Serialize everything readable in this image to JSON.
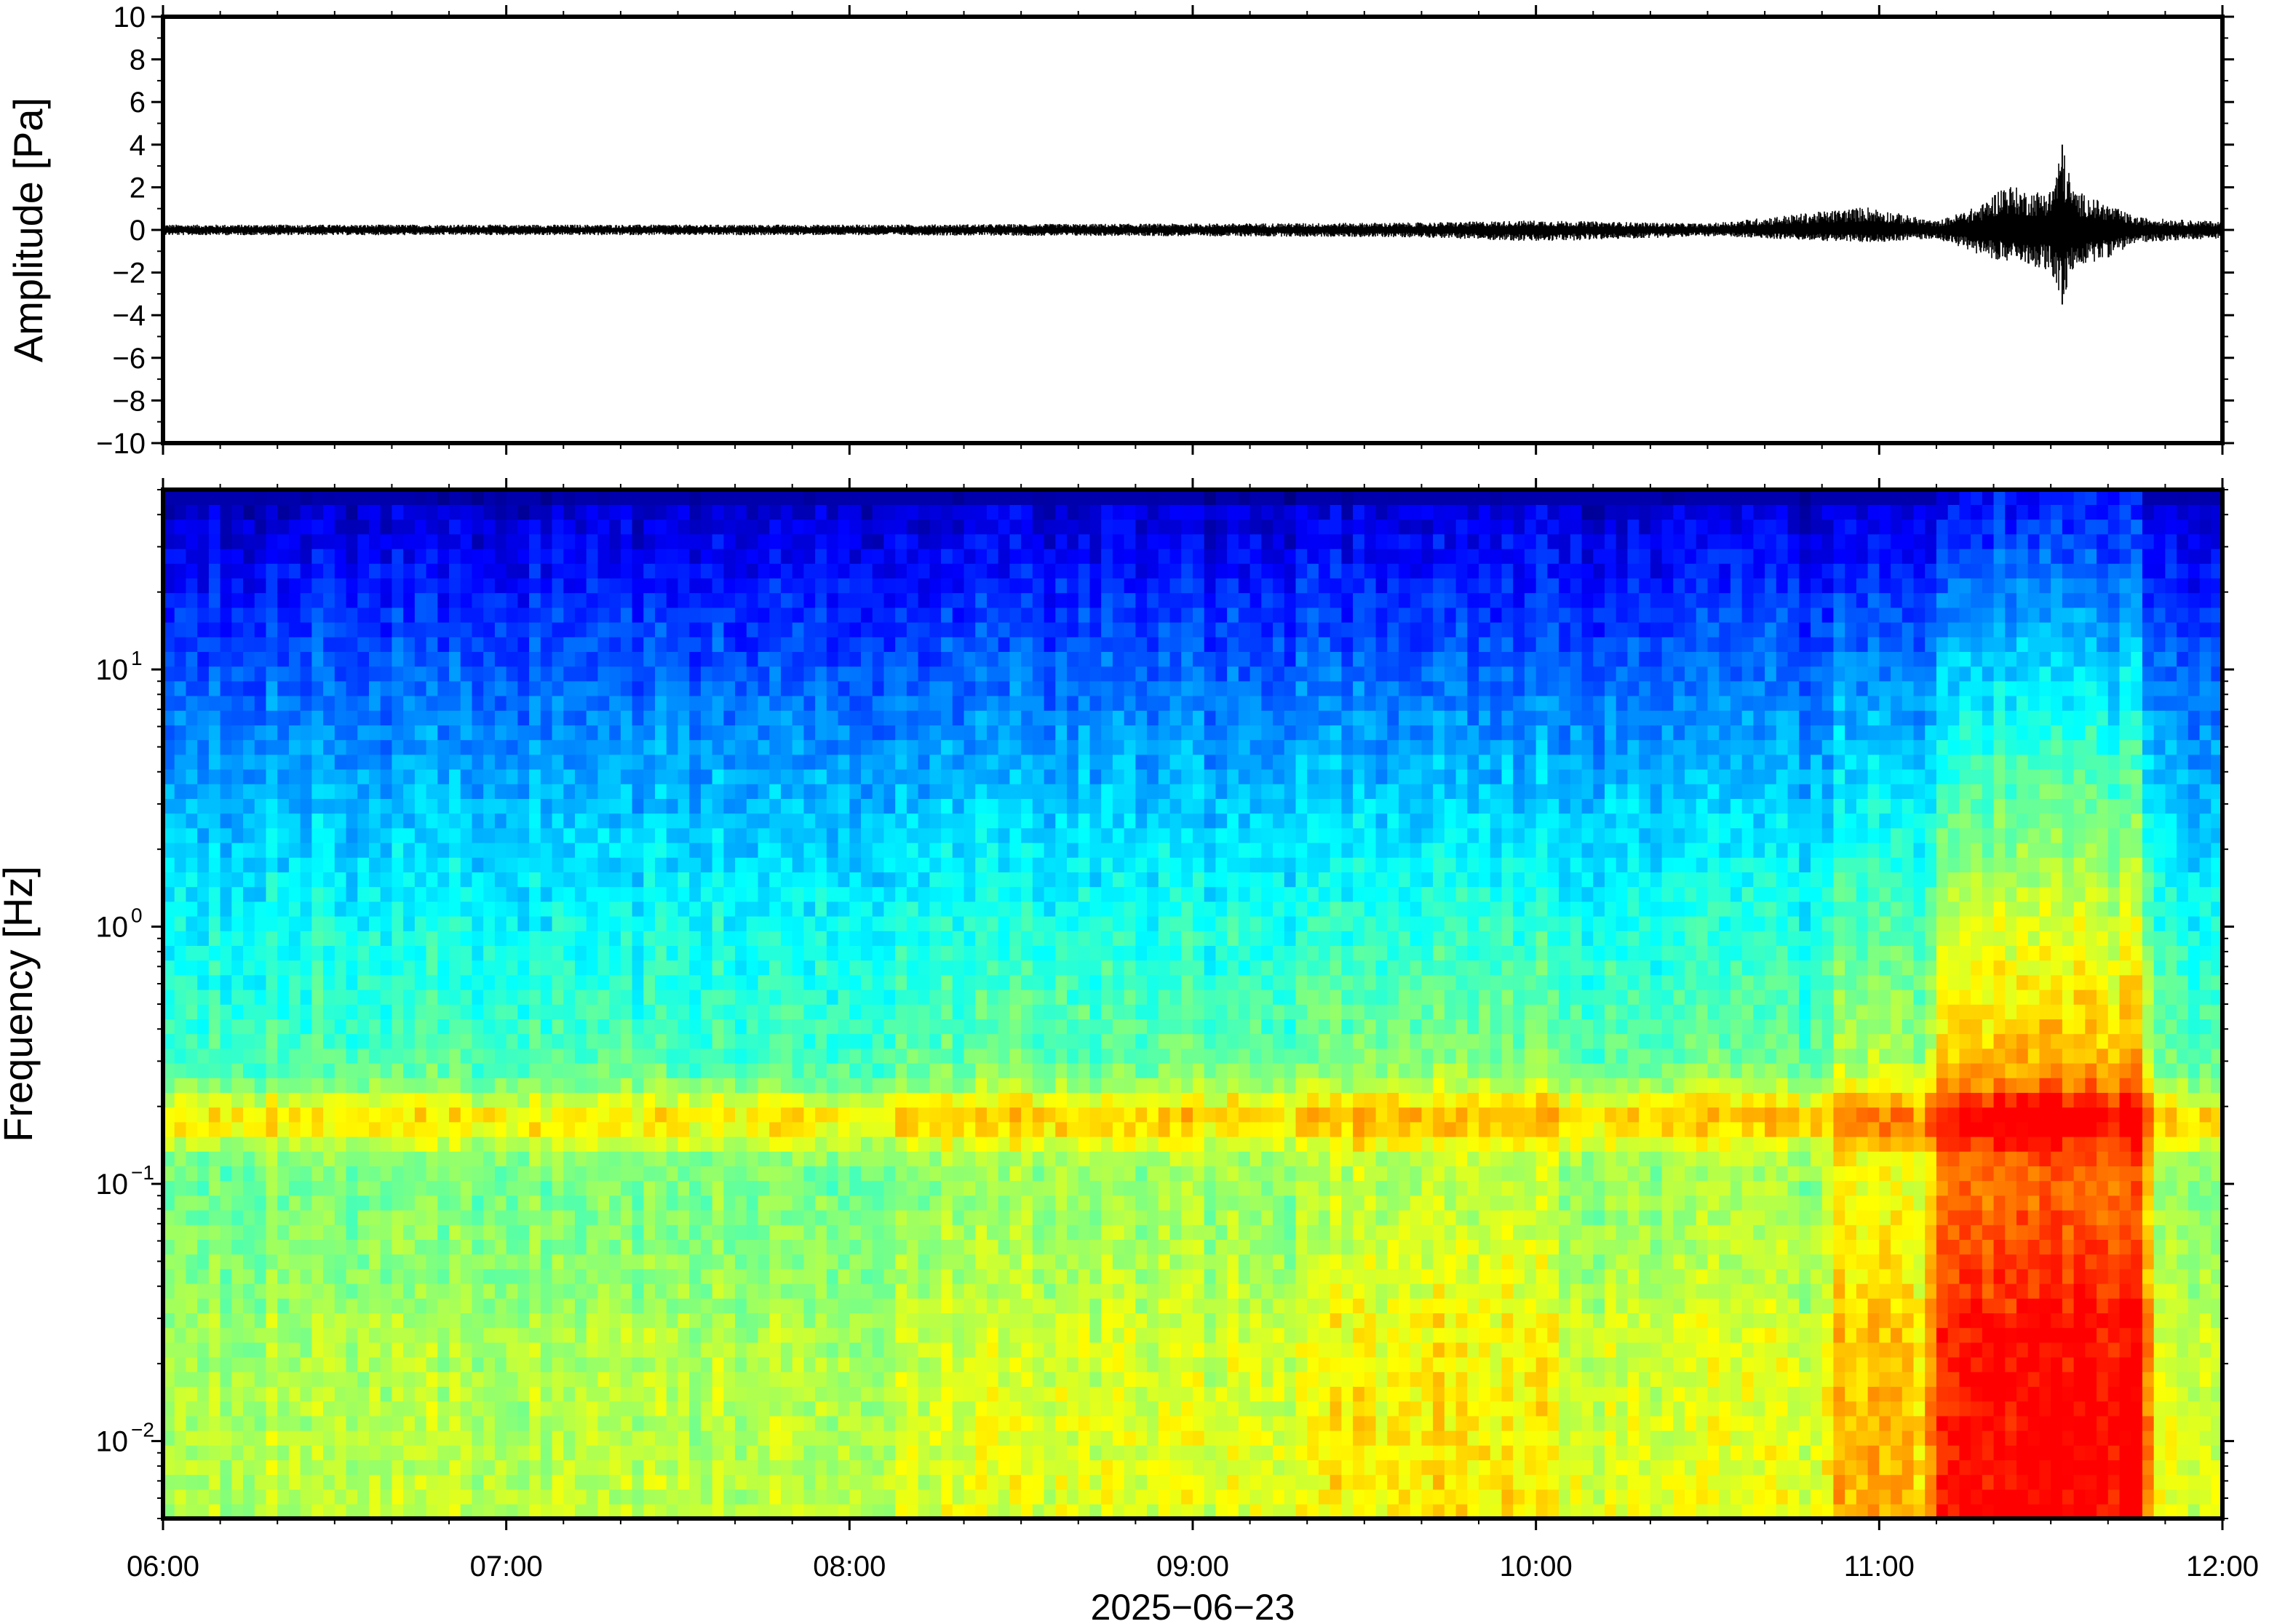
{
  "chart_data": [
    {
      "type": "line",
      "panel": "waveform",
      "ylabel": "Amplitude [Pa]",
      "ylim": [
        -10,
        10
      ],
      "yticks": [
        "10",
        "8",
        "6",
        "4",
        "2",
        "0",
        "−2",
        "−4",
        "−6",
        "−8",
        "−10"
      ],
      "ytick_values": [
        10,
        8,
        6,
        4,
        2,
        0,
        -2,
        -4,
        -6,
        -8,
        -10
      ],
      "xlim": [
        "06:00",
        "12:00"
      ],
      "line_color": "#000000",
      "series": [
        {
          "x": [
            "06:00",
            "07:00",
            "08:00",
            "09:00",
            "09:40",
            "10:00",
            "10:30",
            "10:58",
            "11:10",
            "11:18",
            "11:22",
            "11:26",
            "11:30",
            "11:32",
            "11:34",
            "11:40",
            "11:45",
            "11:55",
            "12:00"
          ],
          "peak": [
            0.25,
            0.25,
            0.25,
            0.3,
            0.35,
            0.45,
            0.3,
            1.1,
            0.4,
            1.2,
            2.2,
            1.8,
            1.9,
            4.0,
            1.9,
            1.2,
            0.6,
            0.45,
            0.4
          ],
          "trough": [
            -0.25,
            -0.25,
            -0.25,
            -0.3,
            -0.35,
            -0.55,
            -0.3,
            -0.6,
            -0.4,
            -1.2,
            -1.5,
            -1.6,
            -2.0,
            -3.5,
            -1.8,
            -1.3,
            -0.6,
            -0.45,
            -0.4
          ]
        }
      ]
    },
    {
      "type": "heatmap",
      "panel": "spectrogram",
      "ylabel": "Frequency [Hz]",
      "y_scale": "log",
      "ylim": [
        0.005,
        50
      ],
      "yticks": [
        {
          "base": "10",
          "exp": "1",
          "value": 10
        },
        {
          "base": "10",
          "exp": "0",
          "value": 1
        },
        {
          "base": "10",
          "exp": "−1",
          "value": 0.1
        },
        {
          "base": "10",
          "exp": "−2",
          "value": 0.01
        }
      ],
      "colormap": "jet",
      "colors": [
        "#00007f",
        "#0000ff",
        "#007fff",
        "#00ffff",
        "#7fff7f",
        "#ffff00",
        "#ff7f00",
        "#ff0000"
      ],
      "xlabel": "2025−06−23",
      "xticks": [
        "06:00",
        "07:00",
        "08:00",
        "09:00",
        "10:00",
        "11:00",
        "12:00"
      ],
      "noise_band_hz": 0.18,
      "events": [
        {
          "start": "08:07",
          "end": "12:00",
          "level": 0.1
        },
        {
          "start": "09:22",
          "end": "10:05",
          "level": 0.25
        },
        {
          "start": "10:50",
          "end": "11:08",
          "level": 0.4
        },
        {
          "start": "11:08",
          "end": "11:48",
          "level": 0.95,
          "fmax_hz": 45
        }
      ]
    }
  ]
}
